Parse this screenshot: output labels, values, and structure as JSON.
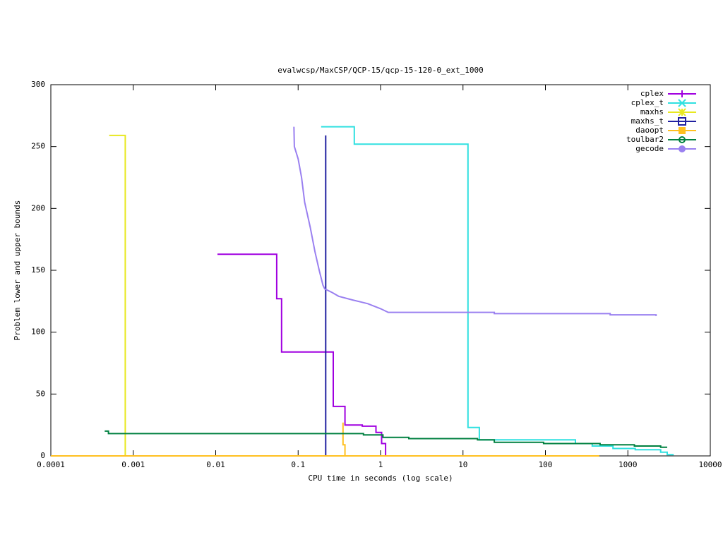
{
  "chart_data": {
    "type": "line",
    "title": "evalwcsp/MaxCSP/QCP-15/qcp-15-120-0_ext_1000",
    "x_label": "CPU time in seconds (log scale)",
    "y_label": "Problem lower and upper bounds",
    "log_x": true,
    "xlim": [
      0.0001,
      10000
    ],
    "xticks": [
      0.0001,
      0.001,
      0.01,
      0.1,
      1,
      10,
      100,
      1000,
      10000
    ],
    "ylim": [
      0,
      300
    ],
    "yticks": [
      0,
      50,
      100,
      150,
      200,
      250,
      300
    ],
    "legend": "top-right",
    "series": [
      {
        "name": "cplex",
        "color": "#a000e0",
        "marker": "plus",
        "x": [
          0.0105,
          0.055,
          0.055,
          0.063,
          0.063,
          0.267,
          0.267,
          0.37,
          0.37,
          0.6,
          0.6,
          0.88,
          0.88,
          1.03,
          1.03,
          1.15,
          1.15
        ],
        "values": [
          163,
          163,
          127,
          127,
          84,
          84,
          40,
          40,
          25,
          25,
          24,
          24,
          19,
          19,
          10,
          10,
          0
        ]
      },
      {
        "name": "cplex_t",
        "color": "#30e0e0",
        "marker": "cross",
        "x": [
          0.19,
          0.48,
          0.48,
          11.5,
          11.5,
          15.8,
          15.8,
          231,
          231,
          370,
          370,
          660,
          660,
          1230,
          1230,
          2500,
          2500,
          3000,
          3000,
          3600
        ],
        "values": [
          266,
          266,
          252,
          252,
          23,
          23,
          13,
          13,
          10,
          10,
          8,
          8,
          6,
          6,
          5,
          5,
          3,
          3,
          1,
          1
        ]
      },
      {
        "name": "maxhs",
        "color": "#e8e820",
        "marker": "star",
        "x": [
          0.00051,
          0.0008,
          0.0008
        ],
        "values": [
          259,
          259,
          0
        ]
      },
      {
        "name": "maxhs_t",
        "color": "#2020a0",
        "marker": "square",
        "x": [
          0.216,
          0.216
        ],
        "values": [
          259,
          0
        ]
      },
      {
        "name": "daoopt",
        "color": "#ffc020",
        "marker": "filled-square",
        "x": [
          0.0001,
          450,
          null,
          0.35,
          0.35,
          0.37,
          0.37
        ],
        "values": [
          0,
          0,
          null,
          27,
          9,
          9,
          0
        ]
      },
      {
        "name": "toulbar2",
        "color": "#008040",
        "marker": "circle",
        "x": [
          0.00045,
          0.0005,
          0.0005,
          0.62,
          0.62,
          1.07,
          1.07,
          2.2,
          2.2,
          15,
          15,
          24,
          24,
          95,
          95,
          460,
          460,
          1200,
          1200,
          2500,
          2500,
          3000
        ],
        "values": [
          20,
          20,
          18,
          18,
          17,
          17,
          15,
          15,
          14,
          14,
          13,
          13,
          11,
          11,
          10,
          10,
          9,
          9,
          8,
          8,
          7,
          7
        ]
      },
      {
        "name": "gecode",
        "color": "#9a80f0",
        "marker": "filled-circle",
        "x": [
          0.089,
          0.09,
          0.1,
          0.11,
          0.12,
          0.14,
          0.16,
          0.18,
          0.2,
          0.21,
          0.26,
          0.31,
          0.46,
          0.7,
          1.0,
          1.24,
          24,
          24,
          610,
          610,
          2200,
          2200
        ],
        "values": [
          266,
          250,
          240,
          225,
          205,
          185,
          165,
          150,
          138,
          135,
          132,
          129,
          126,
          123,
          119,
          116,
          116,
          115,
          115,
          114,
          114,
          113
        ]
      }
    ]
  }
}
